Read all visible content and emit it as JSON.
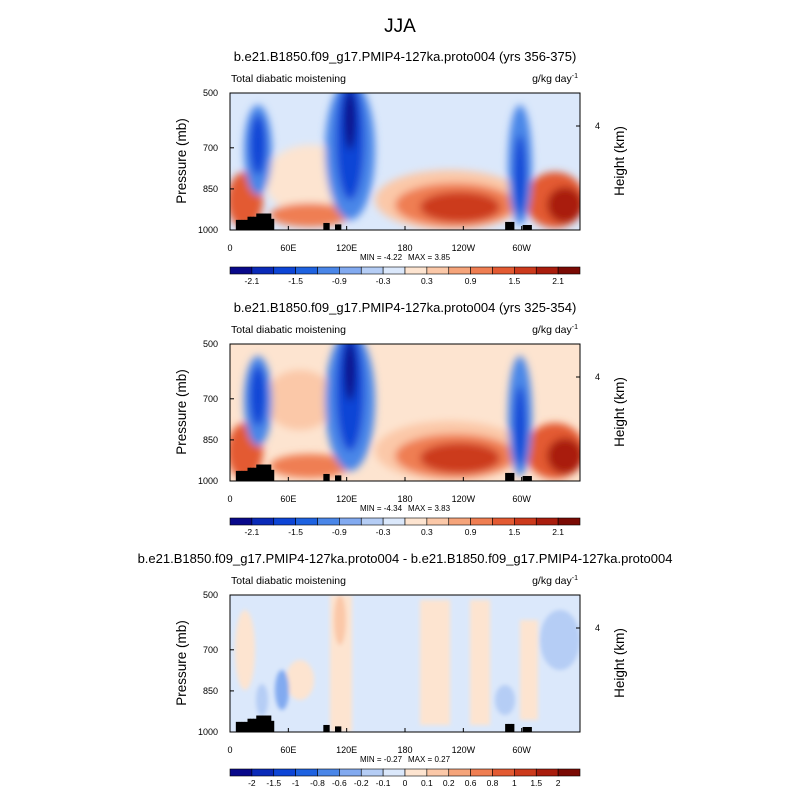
{
  "figure": {
    "title": "JJA"
  },
  "chart_data": [
    {
      "type": "heatmap",
      "title": "b.e21.B1850.f09_g17.PMIP4-127ka.proto004 (yrs 356-375)",
      "left_label": "Total diabatic moistening",
      "units": "g/kg day",
      "units_exponent": "-1",
      "ylabel": "Pressure (mb)",
      "ylabel_right": "Height (km)",
      "x_ticks": [
        "0",
        "60E",
        "120E",
        "180",
        "120W",
        "60W"
      ],
      "y_ticks": [
        "500",
        "700",
        "850",
        "1000"
      ],
      "right_ticks": [
        "4"
      ],
      "xlim": [
        0,
        360
      ],
      "ylim": [
        1000,
        500
      ],
      "min": -4.22,
      "max": 3.85,
      "min_label": "MIN =  -4.22",
      "max_label": "MAX =   3.85",
      "colorbar_labels": [
        "-2.1",
        "-1.5",
        "-0.9",
        "-0.3",
        "0.3",
        "0.9",
        "1.5",
        "2.1"
      ],
      "colorbar_label_bins": [
        1,
        3,
        5,
        7,
        9,
        11,
        13,
        15
      ],
      "colorbar_bins": 16,
      "colors": [
        "#08088a",
        "#0a2ab8",
        "#0d45d6",
        "#1e62e0",
        "#4a86e8",
        "#82aaf0",
        "#b5cdf5",
        "#dbe8fb",
        "#fde4d0",
        "#fbc8a8",
        "#f5a47a",
        "#ef7e52",
        "#e35a32",
        "#cc3a1c",
        "#a91d0d",
        "#7a0a04"
      ],
      "topography": [
        {
          "lon": 8,
          "p": 950
        },
        {
          "lon": 18,
          "p": 950
        },
        {
          "lon": 20,
          "p": 935
        },
        {
          "lon": 26,
          "p": 935
        },
        {
          "lon": 30,
          "p": 920
        },
        {
          "lon": 35,
          "p": 920
        },
        {
          "lon": 40,
          "p": 945
        },
        {
          "lon": 97,
          "p": 965
        },
        {
          "lon": 112,
          "p": 972
        },
        {
          "lon": 285,
          "p": 960
        },
        {
          "lon": 305,
          "p": 975
        }
      ]
    },
    {
      "type": "heatmap",
      "title": "b.e21.B1850.f09_g17.PMIP4-127ka.proto004 (yrs 325-354)",
      "left_label": "Total diabatic moistening",
      "units": "g/kg day",
      "units_exponent": "-1",
      "ylabel": "Pressure (mb)",
      "ylabel_right": "Height (km)",
      "x_ticks": [
        "0",
        "60E",
        "120E",
        "180",
        "120W",
        "60W"
      ],
      "y_ticks": [
        "500",
        "700",
        "850",
        "1000"
      ],
      "right_ticks": [
        "4"
      ],
      "xlim": [
        0,
        360
      ],
      "ylim": [
        1000,
        500
      ],
      "min": -4.34,
      "max": 3.83,
      "min_label": "MIN =  -4.34",
      "max_label": "MAX =   3.83",
      "colorbar_labels": [
        "-2.1",
        "-1.5",
        "-0.9",
        "-0.3",
        "0.3",
        "0.9",
        "1.5",
        "2.1"
      ],
      "colorbar_label_bins": [
        1,
        3,
        5,
        7,
        9,
        11,
        13,
        15
      ],
      "colorbar_bins": 16,
      "colors": [
        "#08088a",
        "#0a2ab8",
        "#0d45d6",
        "#1e62e0",
        "#4a86e8",
        "#82aaf0",
        "#b5cdf5",
        "#dbe8fb",
        "#fde4d0",
        "#fbc8a8",
        "#f5a47a",
        "#ef7e52",
        "#e35a32",
        "#cc3a1c",
        "#a91d0d",
        "#7a0a04"
      ]
    },
    {
      "type": "heatmap",
      "title": "b.e21.B1850.f09_g17.PMIP4-127ka.proto004 - b.e21.B1850.f09_g17.PMIP4-127ka.proto004",
      "left_label": "Total diabatic moistening",
      "units": "g/kg day",
      "units_exponent": "-1",
      "ylabel": "Pressure (mb)",
      "ylabel_right": "Height (km)",
      "x_ticks": [
        "0",
        "60E",
        "120E",
        "180",
        "120W",
        "60W"
      ],
      "y_ticks": [
        "500",
        "700",
        "850",
        "1000"
      ],
      "right_ticks": [
        "4"
      ],
      "xlim": [
        0,
        360
      ],
      "ylim": [
        1000,
        500
      ],
      "min": -0.27,
      "max": 0.27,
      "min_label": "MIN =  -0.27",
      "max_label": "MAX =   0.27",
      "colorbar_labels": [
        "-2",
        "-1.5",
        "-1",
        "-0.8",
        "-0.6",
        "-0.2",
        "-0.1",
        "0",
        "0.1",
        "0.2",
        "0.6",
        "0.8",
        "1",
        "1.5",
        "2"
      ],
      "colorbar_label_bins": [
        1,
        2,
        3,
        4,
        5,
        6,
        7,
        8,
        9,
        10,
        11,
        12,
        13,
        14,
        15
      ],
      "colorbar_bins": 16,
      "colors": [
        "#08088a",
        "#0a2ab8",
        "#0d45d6",
        "#1e62e0",
        "#4a86e8",
        "#82aaf0",
        "#b5cdf5",
        "#dbe8fb",
        "#fde4d0",
        "#fbc8a8",
        "#f5a47a",
        "#ef7e52",
        "#e35a32",
        "#cc3a1c",
        "#a91d0d",
        "#7a0a04"
      ]
    }
  ]
}
